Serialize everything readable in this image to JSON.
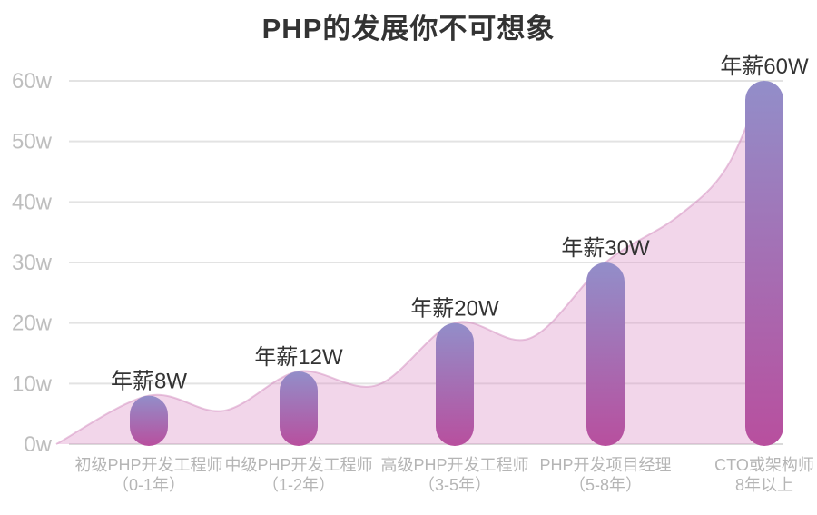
{
  "title": "PHP的发展你不可想象",
  "chart_data": {
    "type": "bar",
    "subtype": "rounded-pill-bars-with-smoothed-area-backdrop",
    "title": "PHP的发展你不可想象",
    "xlabel": "",
    "ylabel": "",
    "categories": [
      {
        "line1": "初级PHP开发工程师",
        "line2": "（0-1年）"
      },
      {
        "line1": "中级PHP开发工程师",
        "line2": "（1-2年）"
      },
      {
        "line1": "高级PHP开发工程师",
        "line2": "（3-5年）"
      },
      {
        "line1": "PHP开发项目经理",
        "line2": "（5-8年）"
      },
      {
        "line1": "CTO或架构师",
        "line2": "8年以上"
      }
    ],
    "series": [
      {
        "name": "年薪",
        "values": [
          8,
          12,
          20,
          30,
          60
        ]
      }
    ],
    "annotations": [
      "年薪8W",
      "年薪12W",
      "年薪20W",
      "年薪30W",
      "年薪60W"
    ],
    "ylim": [
      0,
      60
    ],
    "ytick_values": [
      0,
      10,
      20,
      30,
      40,
      50,
      60
    ],
    "ytick_labels": [
      "0w",
      "10w",
      "20w",
      "30w",
      "40w",
      "50w",
      "60w"
    ],
    "grid": "horizontal",
    "legend": "none",
    "colors": {
      "background": "#FFFFFF",
      "title_text": "#333333",
      "annotation_text": "#333333",
      "tick_text": "#BEBEBE",
      "category_text": "#B5B5B5",
      "grid_line": "#E3E3E3",
      "axis_line": "#DADADA",
      "bar_gradient_top": "#928EC9",
      "bar_gradient_bottom": "#B84F9E",
      "area_fill": "#DD94C7",
      "area_fill_opacity": 0.38,
      "area_stroke": "#D28CBE",
      "area_stroke_opacity": 0.5
    }
  }
}
